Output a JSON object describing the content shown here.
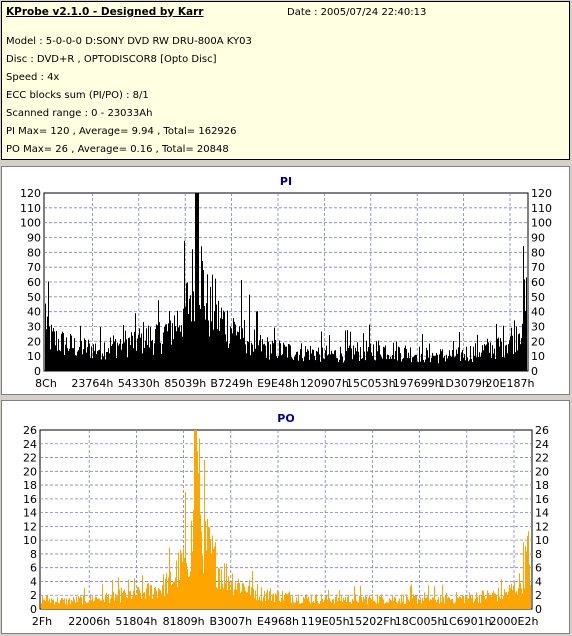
{
  "info": {
    "app_title": "KProbe v2.1.0 - Designed by Karr",
    "date": "Date : 2005/07/24 22:40:13",
    "model": "Model : 5-0-0-0 D:SONY    DVD RW DRU-800A  KY03",
    "disc": "Disc : DVD+R , OPTODISCOR8 [Opto Disc]",
    "speed": "Speed : 4x",
    "ecc": "ECC blocks sum (PI/PO) : 8/1",
    "range": "Scanned range : 0 - 23033Ah",
    "pi_stats": "PI Max= 120 , Average= 9.94 , Total= 162926",
    "po_stats": "PO Max= 26 , Average= 0.16 , Total= 20848"
  },
  "chart_data": [
    {
      "type": "bar",
      "title": "PI",
      "ylim": [
        0,
        120
      ],
      "yticks": [
        0,
        10,
        20,
        30,
        40,
        50,
        60,
        70,
        80,
        90,
        100,
        110,
        120
      ],
      "xtick_labels": [
        "8Ch",
        "23764h",
        "54330h",
        "85039h",
        "B7249h",
        "E9E48h",
        "120907h",
        "15C053h",
        "197699h",
        "1D3079h",
        "20E187h"
      ],
      "x_range_label": "0 - 23033Ah",
      "color": "#000000",
      "grid": true,
      "profile": [
        [
          0,
          52
        ],
        [
          0.01,
          30
        ],
        [
          0.03,
          26
        ],
        [
          0.06,
          22
        ],
        [
          0.1,
          20
        ],
        [
          0.15,
          24
        ],
        [
          0.2,
          28
        ],
        [
          0.24,
          32
        ],
        [
          0.26,
          38
        ],
        [
          0.28,
          48
        ],
        [
          0.295,
          60
        ],
        [
          0.305,
          75
        ],
        [
          0.31,
          95
        ],
        [
          0.315,
          120
        ],
        [
          0.32,
          100
        ],
        [
          0.325,
          85
        ],
        [
          0.33,
          70
        ],
        [
          0.34,
          55
        ],
        [
          0.355,
          48
        ],
        [
          0.37,
          45
        ],
        [
          0.385,
          40
        ],
        [
          0.4,
          38
        ],
        [
          0.42,
          30
        ],
        [
          0.45,
          22
        ],
        [
          0.5,
          18
        ],
        [
          0.55,
          17
        ],
        [
          0.6,
          15
        ],
        [
          0.65,
          18
        ],
        [
          0.7,
          20
        ],
        [
          0.75,
          17
        ],
        [
          0.8,
          14
        ],
        [
          0.85,
          14
        ],
        [
          0.9,
          18
        ],
        [
          0.94,
          22
        ],
        [
          0.97,
          30
        ],
        [
          0.985,
          40
        ],
        [
          0.995,
          58
        ],
        [
          1.0,
          60
        ]
      ],
      "stats": {
        "max": 120,
        "average": 9.94,
        "total": 162926
      }
    },
    {
      "type": "bar",
      "title": "PO",
      "ylim": [
        0,
        26
      ],
      "yticks": [
        0,
        2,
        4,
        6,
        8,
        10,
        12,
        14,
        16,
        18,
        20,
        22,
        24,
        26
      ],
      "xtick_labels": [
        "2Fh",
        "22006h",
        "51804h",
        "81809h",
        "B3007h",
        "E4968h",
        "119E05h",
        "15202Fh",
        "18C005h",
        "1C6901h",
        "2000E2h"
      ],
      "x_range_label": "0 - 23033Ah",
      "color": "#ffa500",
      "grid": true,
      "profile": [
        [
          0,
          2
        ],
        [
          0.05,
          1.5
        ],
        [
          0.1,
          2
        ],
        [
          0.15,
          2.5
        ],
        [
          0.2,
          3
        ],
        [
          0.24,
          4
        ],
        [
          0.27,
          6
        ],
        [
          0.29,
          9
        ],
        [
          0.305,
          12
        ],
        [
          0.315,
          18
        ],
        [
          0.32,
          26
        ],
        [
          0.325,
          16
        ],
        [
          0.335,
          13
        ],
        [
          0.35,
          10
        ],
        [
          0.37,
          7
        ],
        [
          0.4,
          5
        ],
        [
          0.45,
          3
        ],
        [
          0.5,
          2.5
        ],
        [
          0.55,
          2
        ],
        [
          0.6,
          2
        ],
        [
          0.65,
          2
        ],
        [
          0.7,
          2
        ],
        [
          0.75,
          2
        ],
        [
          0.8,
          2
        ],
        [
          0.85,
          2
        ],
        [
          0.9,
          2.5
        ],
        [
          0.95,
          3
        ],
        [
          0.98,
          5
        ],
        [
          0.995,
          11
        ],
        [
          1.0,
          8
        ]
      ],
      "stats": {
        "max": 26,
        "average": 0.16,
        "total": 20848
      }
    }
  ]
}
